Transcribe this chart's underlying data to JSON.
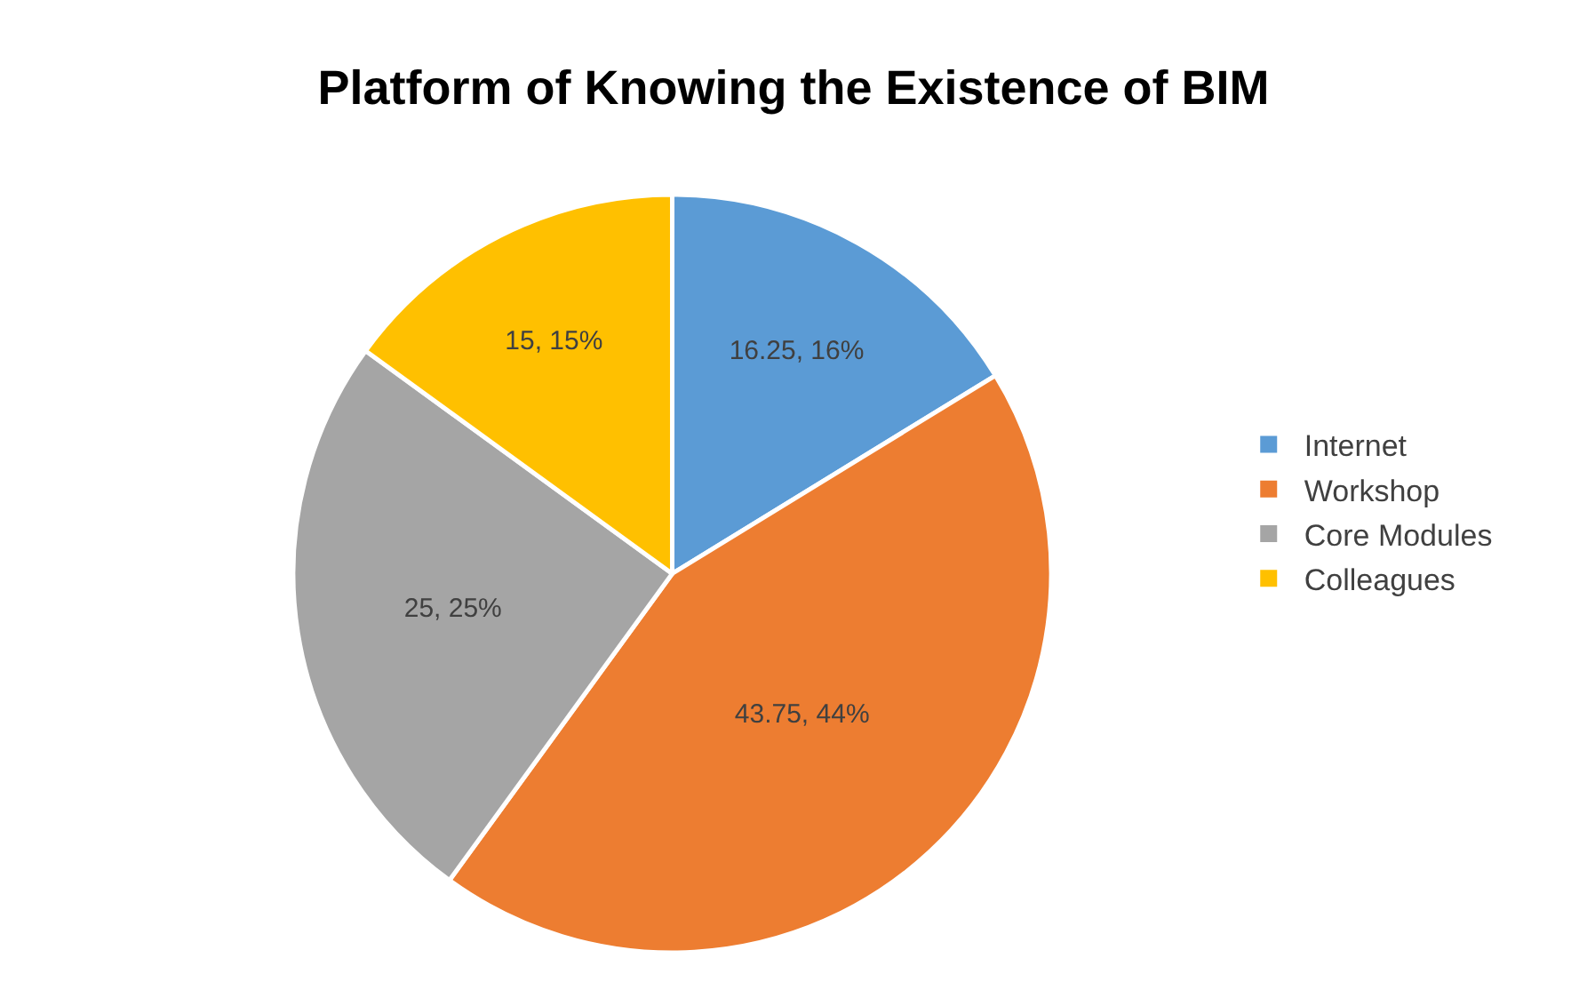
{
  "chart_data": {
    "type": "pie",
    "title": "Platform of Knowing the Existence of BIM",
    "categories": [
      "Internet",
      "Workshop",
      "Core Modules",
      "Colleagues"
    ],
    "values": [
      16.25,
      43.75,
      25,
      15
    ],
    "colors": [
      "#5b9bd5",
      "#ed7d31",
      "#a5a5a5",
      "#ffc000"
    ],
    "value_labels": [
      "16.25, 16%",
      "43.75, 44%",
      "25, 25%",
      "15, 15%"
    ],
    "legend": "right"
  }
}
